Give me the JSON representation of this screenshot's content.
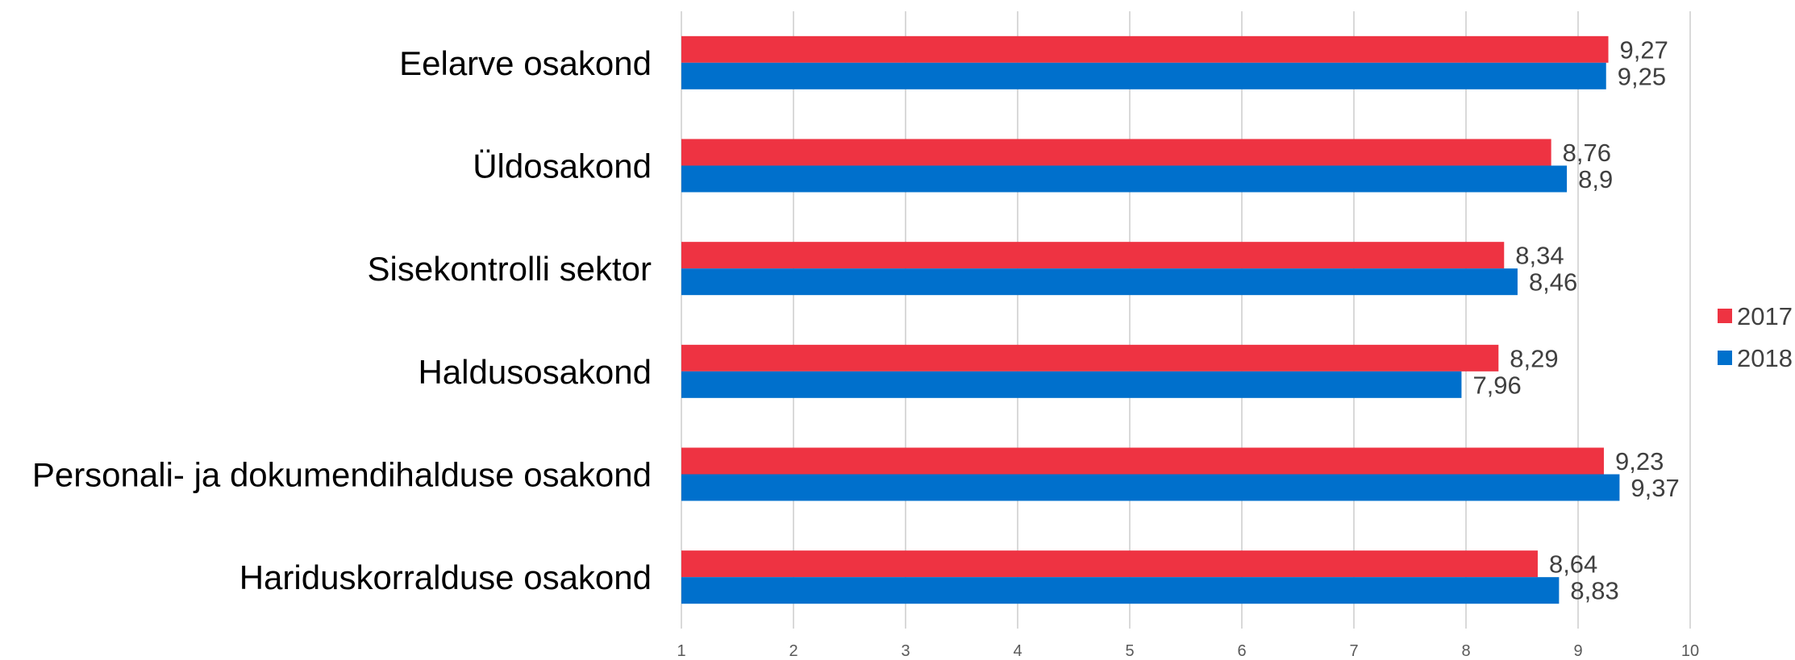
{
  "chart_data": {
    "type": "bar",
    "orientation": "horizontal",
    "categories": [
      "Eelarve osakond",
      "Üldosakond",
      "Sisekontrolli sektor",
      "Haldusosakond",
      "Personali- ja dokumendihalduse osakond",
      "Hariduskorralduse osakond"
    ],
    "series": [
      {
        "name": "2017",
        "color": "#ee3342",
        "values": [
          9.27,
          8.76,
          8.34,
          8.29,
          9.23,
          8.64
        ],
        "labels": [
          "9,27",
          "8,76",
          "8,34",
          "8,29",
          "9,23",
          "8,64"
        ]
      },
      {
        "name": "2018",
        "color": "#0070cc",
        "values": [
          9.25,
          8.9,
          8.46,
          7.96,
          9.37,
          8.83
        ],
        "labels": [
          "9,25",
          "8,9",
          "8,46",
          "7,96",
          "9,37",
          "8,83"
        ]
      }
    ],
    "xlim": [
      1,
      10
    ],
    "xticks": [
      "1",
      "2",
      "3",
      "4",
      "5",
      "6",
      "7",
      "8",
      "9",
      "10"
    ],
    "grid": "vertical",
    "legend_position": "right"
  }
}
